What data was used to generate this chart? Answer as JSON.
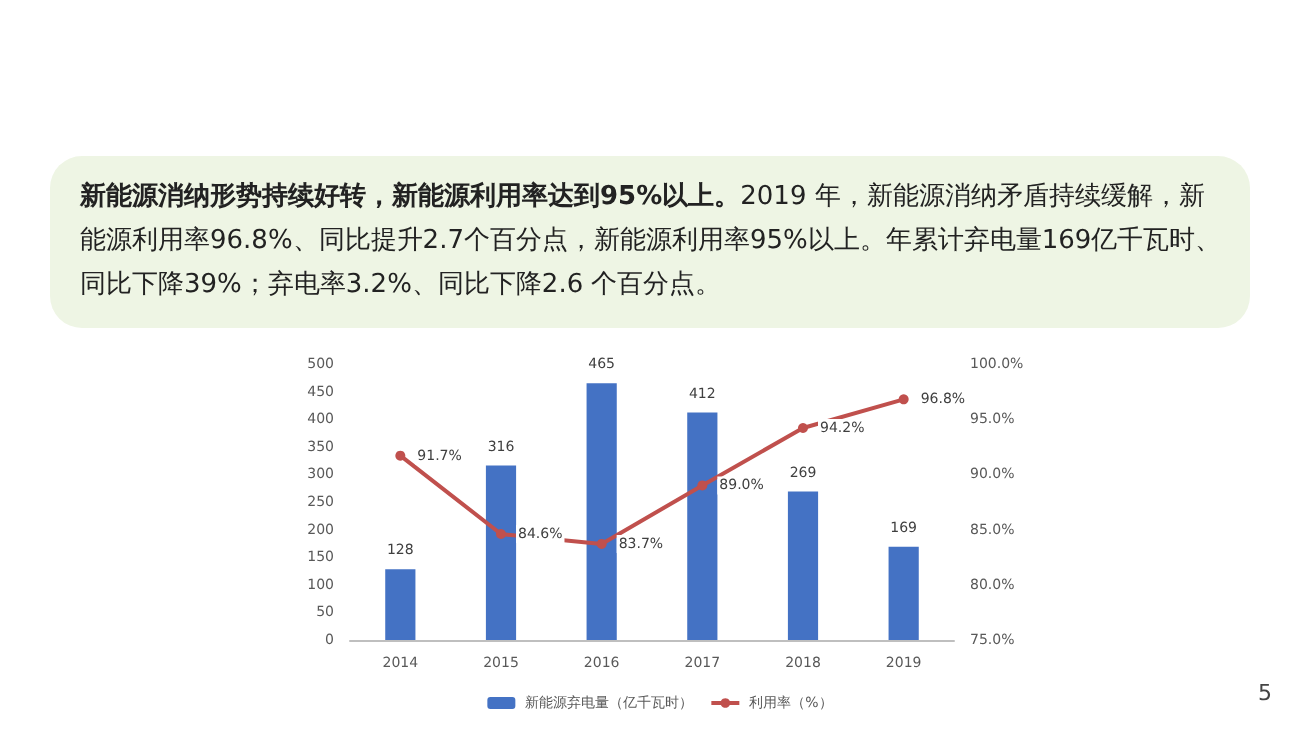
{
  "chart_data": {
    "type": "bar",
    "title": "新能源消纳形势持续好转，新能源利用率达到95%以上。",
    "subtitle": "2019 年，新能源消纳矛盾持续缓解，新能源利用率96.8%、同比提升2.7个百分点，新能源利用率95%以上。年累计弃电量169亿千瓦时、同比下降39%；弃电率3.2%、同比下降2.6 个百分点。",
    "annotations": [
      "5"
    ],
    "categories": [
      "2014",
      "2015",
      "2016",
      "2017",
      "2018",
      "2019"
    ],
    "series": [
      {
        "name": "新能源弃电量（亿千瓦时）",
        "color": "#4472c4",
        "values": [
          128,
          316,
          465,
          412,
          269,
          169
        ],
        "value_labels": [
          "128",
          "316",
          "465",
          "412",
          "269",
          "169"
        ]
      },
      {
        "type": "line",
        "name": "利用率（%）",
        "color": "#c0504d",
        "axis": "y2",
        "marker": "circle",
        "values": [
          91.7,
          84.6,
          83.7,
          89.0,
          94.2,
          96.8
        ],
        "value_labels": [
          "91.7%",
          "84.6%",
          "83.7%",
          "89.0%",
          "94.2%",
          "96.8%"
        ]
      }
    ],
    "ylim": [
      0,
      500
    ],
    "yticks": [
      0,
      50,
      100,
      150,
      200,
      250,
      300,
      350,
      400,
      450,
      500
    ],
    "y2lim": [
      75,
      100
    ],
    "y2ticks": [
      {
        "value": 75,
        "label": "75.0%"
      },
      {
        "value": 80,
        "label": "80.0%"
      },
      {
        "value": 85,
        "label": "85.0%"
      },
      {
        "value": 90,
        "label": "90.0%"
      },
      {
        "value": 95,
        "label": "95.0%"
      },
      {
        "value": 100,
        "label": "100.0%"
      }
    ],
    "grid": false,
    "legend": "bottom"
  }
}
